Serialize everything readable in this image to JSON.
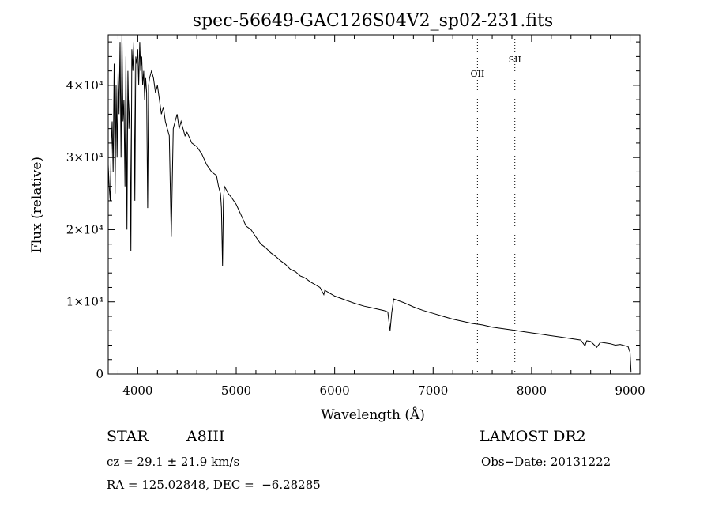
{
  "chart_data": {
    "type": "line",
    "title": "spec-56649-GAC126S04V2_sp02-231.fits",
    "xlabel": "Wavelength (Å)",
    "ylabel": "Flux (relative)",
    "xlim": [
      3700,
      9100
    ],
    "ylim": [
      0,
      47000
    ],
    "x_ticks": [
      {
        "value": 4000,
        "label": "4000"
      },
      {
        "value": 5000,
        "label": "5000"
      },
      {
        "value": 6000,
        "label": "6000"
      },
      {
        "value": 7000,
        "label": "7000"
      },
      {
        "value": 8000,
        "label": "8000"
      },
      {
        "value": 9000,
        "label": "9000"
      }
    ],
    "y_ticks": [
      {
        "value": 0,
        "label": "0"
      },
      {
        "value": 10000,
        "label": "1×10⁴"
      },
      {
        "value": 20000,
        "label": "2×10⁴"
      },
      {
        "value": 30000,
        "label": "3×10⁴"
      },
      {
        "value": 40000,
        "label": "4×10⁴"
      }
    ],
    "line_markers": [
      {
        "label": "OII",
        "x": 7450
      },
      {
        "label": "SII",
        "x": 7830
      }
    ],
    "series": [
      {
        "x": [
          3700,
          3710,
          3720,
          3730,
          3740,
          3750,
          3760,
          3770,
          3780,
          3790,
          3800,
          3810,
          3820,
          3830,
          3840,
          3850,
          3860,
          3870,
          3880,
          3890,
          3900,
          3910,
          3920,
          3930,
          3940,
          3950,
          3960,
          3970,
          3980,
          3990,
          4000,
          4010,
          4020,
          4030,
          4040,
          4050,
          4060,
          4070,
          4080,
          4090,
          4100,
          4110,
          4120,
          4140,
          4160,
          4180,
          4200,
          4220,
          4240,
          4260,
          4280,
          4300,
          4320,
          4340,
          4360,
          4380,
          4400,
          4420,
          4440,
          4460,
          4480,
          4500,
          4550,
          4600,
          4650,
          4700,
          4750,
          4800,
          4820,
          4840,
          4850,
          4861,
          4870,
          4880,
          4900,
          4920,
          4950,
          5000,
          5050,
          5100,
          5150,
          5200,
          5250,
          5300,
          5350,
          5400,
          5450,
          5500,
          5550,
          5600,
          5650,
          5700,
          5750,
          5800,
          5850,
          5890,
          5900,
          5950,
          6000,
          6100,
          6200,
          6300,
          6400,
          6500,
          6540,
          6563,
          6580,
          6600,
          6700,
          6800,
          6900,
          7000,
          7100,
          7200,
          7300,
          7400,
          7500,
          7600,
          7700,
          7800,
          7900,
          8000,
          8100,
          8200,
          8300,
          8400,
          8500,
          8542,
          8560,
          8600,
          8662,
          8700,
          8750,
          8800,
          8850,
          8900,
          8950,
          8980,
          9000,
          9010
        ],
        "y": [
          29000,
          26000,
          24000,
          31000,
          35000,
          28000,
          43000,
          25000,
          40000,
          30000,
          42000,
          36000,
          46000,
          30000,
          47000,
          35000,
          38000,
          26000,
          44000,
          20000,
          42000,
          34000,
          38000,
          17000,
          45000,
          42000,
          46000,
          24000,
          44000,
          43000,
          45000,
          40000,
          46000,
          42000,
          44000,
          40000,
          42000,
          38000,
          41000,
          39000,
          23000,
          40000,
          41000,
          42000,
          41000,
          39000,
          40000,
          38000,
          36000,
          37000,
          35000,
          34000,
          33000,
          19000,
          34000,
          35000,
          36000,
          34000,
          35000,
          34000,
          33000,
          33500,
          32000,
          31500,
          30500,
          29000,
          28000,
          27500,
          26000,
          25000,
          23000,
          15000,
          24000,
          26000,
          25500,
          25000,
          24500,
          23500,
          22000,
          20500,
          20000,
          19000,
          18000,
          17500,
          16800,
          16300,
          15700,
          15200,
          14500,
          14200,
          13600,
          13300,
          12800,
          12400,
          12000,
          11000,
          11600,
          11200,
          10800,
          10300,
          9800,
          9400,
          9100,
          8800,
          8600,
          6000,
          8500,
          10400,
          9900,
          9300,
          8800,
          8400,
          8000,
          7600,
          7300,
          7000,
          6800,
          6500,
          6300,
          6100,
          5900,
          5700,
          5500,
          5300,
          5100,
          4900,
          4700,
          3900,
          4600,
          4500,
          3700,
          4400,
          4300,
          4200,
          4000,
          4100,
          3900,
          3800,
          3000,
          200
        ]
      }
    ]
  },
  "info": {
    "object_class": "STAR",
    "subclass": "A8III",
    "survey": "LAMOST DR2",
    "cz": "cz = 29.1 ± 21.9 km/s",
    "obs_date": "Obs−Date: 20131222",
    "radec": "RA = 125.02848, DEC =  −6.28285"
  }
}
